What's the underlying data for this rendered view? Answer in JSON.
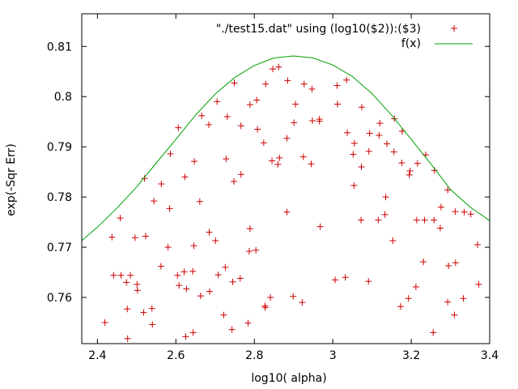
{
  "chart_data": {
    "type": "scatter",
    "xlabel": "log10( alpha)",
    "ylabel": "exp(-Sqr Err)",
    "xlim": [
      2.36,
      3.4
    ],
    "ylim": [
      0.7508,
      0.8165
    ],
    "x_ticks": [
      2.4,
      2.6,
      2.8,
      3.0,
      3.2,
      3.4
    ],
    "x_tick_labels": [
      "2.4",
      "2.6",
      "2.8",
      "3",
      "3.2",
      "3.4"
    ],
    "y_ticks": [
      0.76,
      0.77,
      0.78,
      0.79,
      0.8,
      0.81
    ],
    "y_tick_labels": [
      "0.76",
      "0.77",
      "0.78",
      "0.79",
      "0.8",
      "0.81"
    ],
    "grid": false,
    "legend_position": "top-right",
    "series": [
      {
        "name": "\"./test15.dat\" using (log10($2)):($3)",
        "kind": "points",
        "marker": "+",
        "color": "#cc0000",
        "points": [
          [
            2.419,
            0.755
          ],
          [
            2.437,
            0.772
          ],
          [
            2.441,
            0.7644
          ],
          [
            2.458,
            0.7758
          ],
          [
            2.46,
            0.7644
          ],
          [
            2.474,
            0.763
          ],
          [
            2.476,
            0.7577
          ],
          [
            2.477,
            0.7518
          ],
          [
            2.484,
            0.7644
          ],
          [
            2.496,
            0.7719
          ],
          [
            2.501,
            0.7626
          ],
          [
            2.502,
            0.7614
          ],
          [
            2.518,
            0.757
          ],
          [
            2.52,
            0.7837
          ],
          [
            2.523,
            0.7722
          ],
          [
            2.539,
            0.7578
          ],
          [
            2.54,
            0.7546
          ],
          [
            2.544,
            0.7792
          ],
          [
            2.562,
            0.7662
          ],
          [
            2.563,
            0.7826
          ],
          [
            2.58,
            0.77
          ],
          [
            2.584,
            0.7777
          ],
          [
            2.586,
            0.7886
          ],
          [
            2.604,
            0.7644
          ],
          [
            2.606,
            0.7938
          ],
          [
            2.608,
            0.7624
          ],
          [
            2.621,
            0.7651
          ],
          [
            2.623,
            0.784
          ],
          [
            2.627,
            0.7617
          ],
          [
            2.625,
            0.7522
          ],
          [
            2.643,
            0.7652
          ],
          [
            2.644,
            0.753
          ],
          [
            2.646,
            0.7703
          ],
          [
            2.647,
            0.7871
          ],
          [
            2.661,
            0.7791
          ],
          [
            2.663,
            0.7603
          ],
          [
            2.666,
            0.7962
          ],
          [
            2.685,
            0.773
          ],
          [
            2.684,
            0.7944
          ],
          [
            2.686,
            0.7612
          ],
          [
            2.701,
            0.7713
          ],
          [
            2.705,
            0.799
          ],
          [
            2.708,
            0.7645
          ],
          [
            2.722,
            0.7565
          ],
          [
            2.726,
            0.766
          ],
          [
            2.728,
            0.7876
          ],
          [
            2.731,
            0.796
          ],
          [
            2.743,
            0.7536
          ],
          [
            2.745,
            0.7631
          ],
          [
            2.748,
            0.7831
          ],
          [
            2.749,
            0.8027
          ],
          [
            2.764,
            0.7638
          ],
          [
            2.766,
            0.7845
          ],
          [
            2.766,
            0.7942
          ],
          [
            2.784,
            0.7549
          ],
          [
            2.787,
            0.7692
          ],
          [
            2.789,
            0.7737
          ],
          [
            2.789,
            0.7984
          ],
          [
            2.804,
            0.7694
          ],
          [
            2.806,
            0.7993
          ],
          [
            2.808,
            0.7935
          ],
          [
            2.824,
            0.7908
          ],
          [
            2.827,
            0.7583
          ],
          [
            2.828,
            0.758
          ],
          [
            2.829,
            0.8025
          ],
          [
            2.841,
            0.76
          ],
          [
            2.845,
            0.7872
          ],
          [
            2.847,
            0.8055
          ],
          [
            2.86,
            0.7865
          ],
          [
            2.862,
            0.8059
          ],
          [
            2.864,
            0.7878
          ],
          [
            2.883,
            0.777
          ],
          [
            2.883,
            0.7917
          ],
          [
            2.885,
            0.8032
          ],
          [
            2.899,
            0.7602
          ],
          [
            2.901,
            0.7948
          ],
          [
            2.905,
            0.7985
          ],
          [
            2.922,
            0.759
          ],
          [
            2.925,
            0.788
          ],
          [
            2.927,
            0.8025
          ],
          [
            2.945,
            0.7866
          ],
          [
            2.947,
            0.8015
          ],
          [
            2.948,
            0.7952
          ],
          [
            2.966,
            0.7951
          ],
          [
            2.966,
            0.7955
          ],
          [
            2.968,
            0.7741
          ],
          [
            3.006,
            0.7635
          ],
          [
            3.011,
            0.8022
          ],
          [
            3.012,
            0.7985
          ],
          [
            3.032,
            0.764
          ],
          [
            3.035,
            0.8033
          ],
          [
            3.037,
            0.7928
          ],
          [
            3.052,
            0.7885
          ],
          [
            3.054,
            0.7823
          ],
          [
            3.055,
            0.7907
          ],
          [
            3.072,
            0.7754
          ],
          [
            3.073,
            0.786
          ],
          [
            3.074,
            0.7979
          ],
          [
            3.091,
            0.7632
          ],
          [
            3.092,
            0.7891
          ],
          [
            3.094,
            0.7927
          ],
          [
            3.116,
            0.7754
          ],
          [
            3.118,
            0.7923
          ],
          [
            3.12,
            0.7947
          ],
          [
            3.133,
            0.7765
          ],
          [
            3.135,
            0.78
          ],
          [
            3.138,
            0.7906
          ],
          [
            3.153,
            0.7713
          ],
          [
            3.156,
            0.789
          ],
          [
            3.157,
            0.7956
          ],
          [
            3.173,
            0.7582
          ],
          [
            3.176,
            0.7868
          ],
          [
            3.177,
            0.7931
          ],
          [
            3.193,
            0.7598
          ],
          [
            3.195,
            0.7844
          ],
          [
            3.197,
            0.7852
          ],
          [
            3.212,
            0.7621
          ],
          [
            3.214,
            0.7754
          ],
          [
            3.216,
            0.7867
          ],
          [
            3.231,
            0.7671
          ],
          [
            3.234,
            0.7754
          ],
          [
            3.237,
            0.7884
          ],
          [
            3.256,
            0.753
          ],
          [
            3.258,
            0.7754
          ],
          [
            3.259,
            0.7853
          ],
          [
            3.274,
            0.7738
          ],
          [
            3.276,
            0.778
          ],
          [
            3.293,
            0.7591
          ],
          [
            3.293,
            0.7814
          ],
          [
            3.295,
            0.7663
          ],
          [
            3.31,
            0.7565
          ],
          [
            3.312,
            0.7771
          ],
          [
            3.313,
            0.7669
          ],
          [
            3.333,
            0.7598
          ],
          [
            3.335,
            0.777
          ],
          [
            3.352,
            0.7766
          ],
          [
            3.369,
            0.7705
          ],
          [
            3.372,
            0.7626
          ]
        ]
      },
      {
        "name": "f(x)",
        "kind": "line",
        "color": "#00a000",
        "points": [
          [
            2.36,
            0.7713
          ],
          [
            2.4,
            0.774
          ],
          [
            2.45,
            0.7778
          ],
          [
            2.5,
            0.782
          ],
          [
            2.55,
            0.7868
          ],
          [
            2.6,
            0.7915
          ],
          [
            2.65,
            0.7963
          ],
          [
            2.7,
            0.8005
          ],
          [
            2.75,
            0.8038
          ],
          [
            2.8,
            0.8062
          ],
          [
            2.85,
            0.8077
          ],
          [
            2.9,
            0.8081
          ],
          [
            2.95,
            0.8077
          ],
          [
            3.0,
            0.8063
          ],
          [
            3.05,
            0.804
          ],
          [
            3.1,
            0.8006
          ],
          [
            3.15,
            0.7963
          ],
          [
            3.2,
            0.7915
          ],
          [
            3.25,
            0.7866
          ],
          [
            3.3,
            0.7815
          ],
          [
            3.35,
            0.778
          ],
          [
            3.4,
            0.7753
          ]
        ]
      }
    ]
  }
}
